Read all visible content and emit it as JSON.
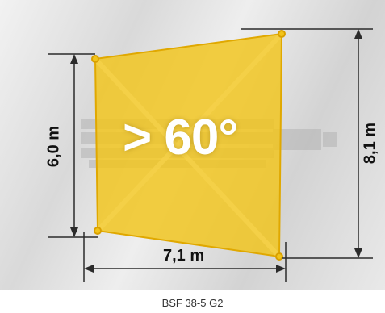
{
  "diagram": {
    "angle_label": "> 60°",
    "height_left_label": "6,0 m",
    "height_right_label": "8,1 m",
    "width_bottom_label": "7,1 m",
    "caption": "BSF 38-5 G2",
    "colors": {
      "sail_fill": "#f2c41a",
      "sail_edge": "#e0a800",
      "dimension_line": "#2b2b2b",
      "angle_text": "#ffffff"
    }
  }
}
